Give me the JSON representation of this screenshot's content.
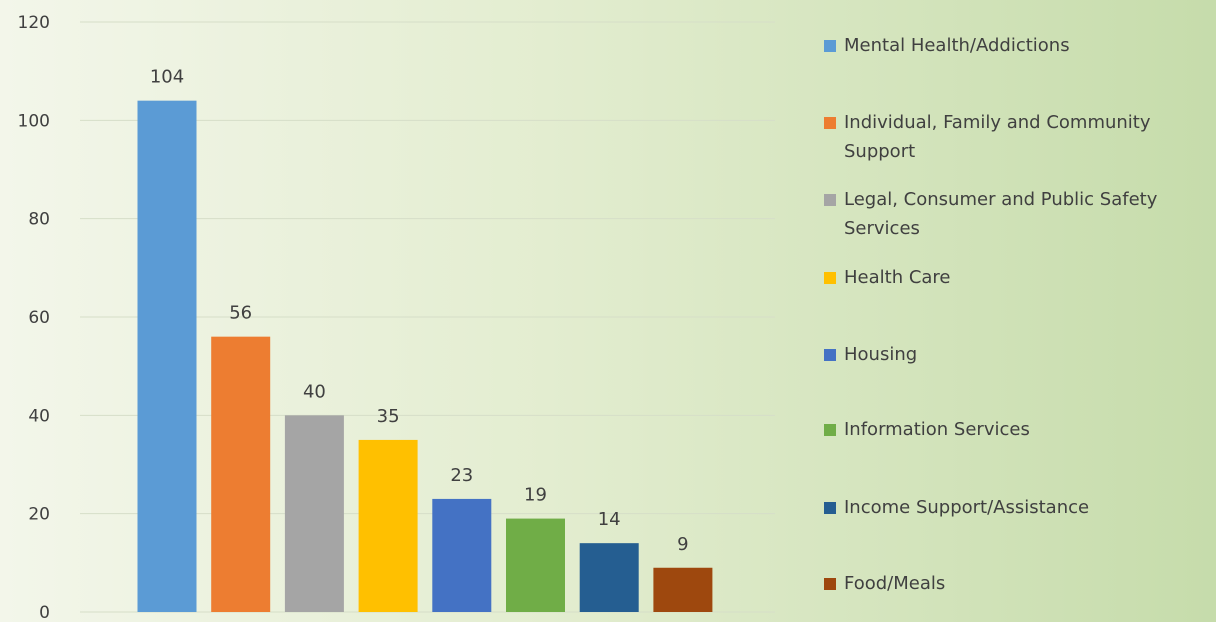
{
  "chart_data": {
    "type": "bar",
    "categories": [
      "Mental Health/Addictions",
      "Individual, Family and Community Support",
      "Legal, Consumer and Public Safety Services",
      "Health Care",
      "Housing",
      "Information Services",
      "Income Support/Assistance",
      "Food/Meals"
    ],
    "values": [
      104,
      56,
      40,
      35,
      23,
      19,
      14,
      9
    ],
    "colors": [
      "#5b9bd5",
      "#ed7d31",
      "#a5a5a5",
      "#ffc000",
      "#4472c4",
      "#70ad47",
      "#255e91",
      "#9e480e"
    ],
    "ylim": [
      0,
      120
    ],
    "yticks": [
      0,
      20,
      40,
      60,
      80,
      100,
      120
    ],
    "grid": true,
    "legend_position": "right",
    "data_labels": true,
    "title": "",
    "xlabel": "",
    "ylabel": ""
  }
}
